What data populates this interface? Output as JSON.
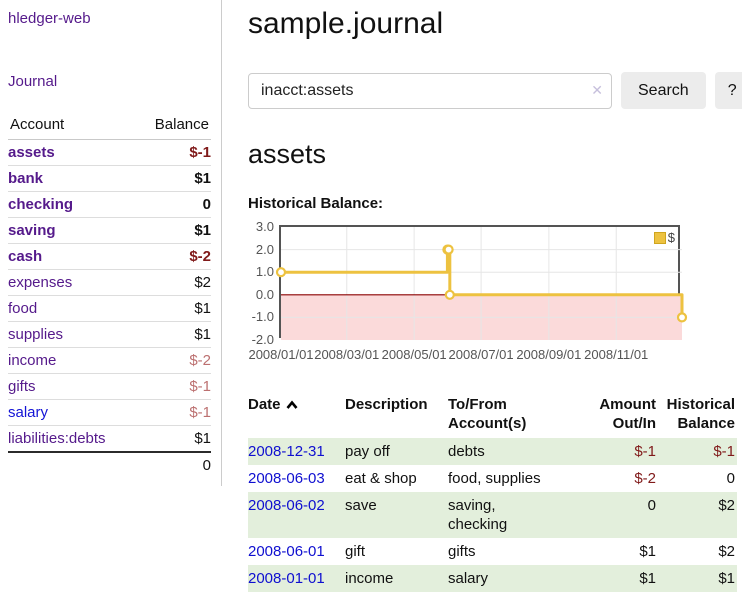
{
  "colors": {
    "link_purple": "#551a8b",
    "link_blue": "#1414d6",
    "date_link_blue": "#0f0fd0",
    "negative_strong": "#801a1a",
    "negative_soft": "#bc7070",
    "row_shade_green": "#e3efdc",
    "chart_line_gold": "#edc240",
    "chart_zero_line": "#8b0000",
    "chart_negative_area": "#fbdada",
    "chart_border": "#545454",
    "button_gray": "#ececec"
  },
  "sidebar": {
    "brand": "hledger-web",
    "nav": [
      {
        "label": "Journal"
      }
    ],
    "accounts": {
      "headers": [
        "Account",
        "Balance"
      ],
      "rows": [
        {
          "name": "assets",
          "level": 1,
          "bold": true,
          "balance": "$-1",
          "balance_tone": "neg-strong",
          "link_tone": "purple"
        },
        {
          "name": "bank",
          "level": 2,
          "bold": true,
          "balance": "$1",
          "balance_tone": "normal",
          "link_tone": "purple"
        },
        {
          "name": "checking",
          "level": 3,
          "bold": true,
          "balance": "0",
          "balance_tone": "normal",
          "link_tone": "purple"
        },
        {
          "name": "saving",
          "level": 3,
          "bold": true,
          "balance": "$1",
          "balance_tone": "normal",
          "link_tone": "purple"
        },
        {
          "name": "cash",
          "level": 2,
          "bold": true,
          "balance": "$-2",
          "balance_tone": "neg-strong",
          "link_tone": "purple"
        },
        {
          "name": "expenses",
          "level": 1,
          "bold": false,
          "balance": "$2",
          "balance_tone": "normal",
          "link_tone": "purple"
        },
        {
          "name": "food",
          "level": 2,
          "bold": false,
          "balance": "$1",
          "balance_tone": "normal",
          "link_tone": "purple"
        },
        {
          "name": "supplies",
          "level": 2,
          "bold": false,
          "balance": "$1",
          "balance_tone": "normal",
          "link_tone": "purple"
        },
        {
          "name": "income",
          "level": 1,
          "bold": false,
          "balance": "$-2",
          "balance_tone": "neg-soft",
          "link_tone": "purple"
        },
        {
          "name": "gifts",
          "level": 2,
          "bold": false,
          "balance": "$-1",
          "balance_tone": "neg-soft",
          "link_tone": "purple"
        },
        {
          "name": "salary",
          "level": 2,
          "bold": false,
          "balance": "$-1",
          "balance_tone": "neg-soft",
          "link_tone": "blue"
        },
        {
          "name": "liabilities:debts",
          "level": 1,
          "bold": false,
          "balance": "$1",
          "balance_tone": "normal",
          "link_tone": "purple"
        }
      ],
      "total": "0"
    }
  },
  "main": {
    "title": "sample.journal",
    "search": {
      "value": "inacct:assets",
      "clear_icon": "✕",
      "search_button": "Search",
      "help_button": "?"
    },
    "account_heading": "assets",
    "section_label": "Historical Balance:"
  },
  "chart_data": {
    "type": "line",
    "step": true,
    "title": "Historical Balance:",
    "legend": [
      {
        "label": "$",
        "color": "#edc240"
      }
    ],
    "legend_position": "top-right",
    "grid": true,
    "x": [
      "2008-01-01",
      "2008-06-01",
      "2008-06-02",
      "2008-06-03",
      "2008-12-31"
    ],
    "values": [
      1,
      2,
      2,
      0,
      -1
    ],
    "x_positions": [
      0,
      0.415,
      0.418,
      0.421,
      1.0
    ],
    "ylim": [
      -2,
      3
    ],
    "yticks": [
      "3.0",
      "2.0",
      "1.0",
      "0.0",
      "-1.0",
      "-2.0"
    ],
    "ytick_values": [
      3,
      2,
      1,
      0,
      -1,
      -2
    ],
    "xticks": [
      "2008/01/01",
      "2008/03/01",
      "2008/05/01",
      "2008/07/01",
      "2008/09/01",
      "2008/11/01"
    ],
    "xtick_positions": [
      0,
      0.164,
      0.332,
      0.499,
      0.668,
      0.836
    ],
    "negative_area_shaded": true
  },
  "register": {
    "headers": [
      {
        "label": "Date",
        "sorted": "ascending"
      },
      {
        "label": "Description"
      },
      {
        "label": "To/From Account(s)"
      },
      {
        "label": "Amount Out/In",
        "align": "right"
      },
      {
        "label": "Historical Balance",
        "align": "right"
      }
    ],
    "rows": [
      {
        "date": "2008-12-31",
        "description": "pay off",
        "accounts": "debts",
        "amount": "$-1",
        "amount_tone": "neg",
        "balance": "$-1",
        "balance_tone": "neg",
        "shaded": true
      },
      {
        "date": "2008-06-03",
        "description": "eat & shop",
        "accounts": "food, supplies",
        "amount": "$-2",
        "amount_tone": "neg",
        "balance": "0",
        "balance_tone": "normal",
        "shaded": false
      },
      {
        "date": "2008-06-02",
        "description": "save",
        "accounts": "saving,\nchecking",
        "amount": "0",
        "amount_tone": "normal",
        "balance": "$2",
        "balance_tone": "normal",
        "shaded": true
      },
      {
        "date": "2008-06-01",
        "description": "gift",
        "accounts": "gifts",
        "amount": "$1",
        "amount_tone": "normal",
        "balance": "$2",
        "balance_tone": "normal",
        "shaded": false
      },
      {
        "date": "2008-01-01",
        "description": "income",
        "accounts": "salary",
        "amount": "$1",
        "amount_tone": "normal",
        "balance": "$1",
        "balance_tone": "normal",
        "shaded": true
      }
    ]
  }
}
